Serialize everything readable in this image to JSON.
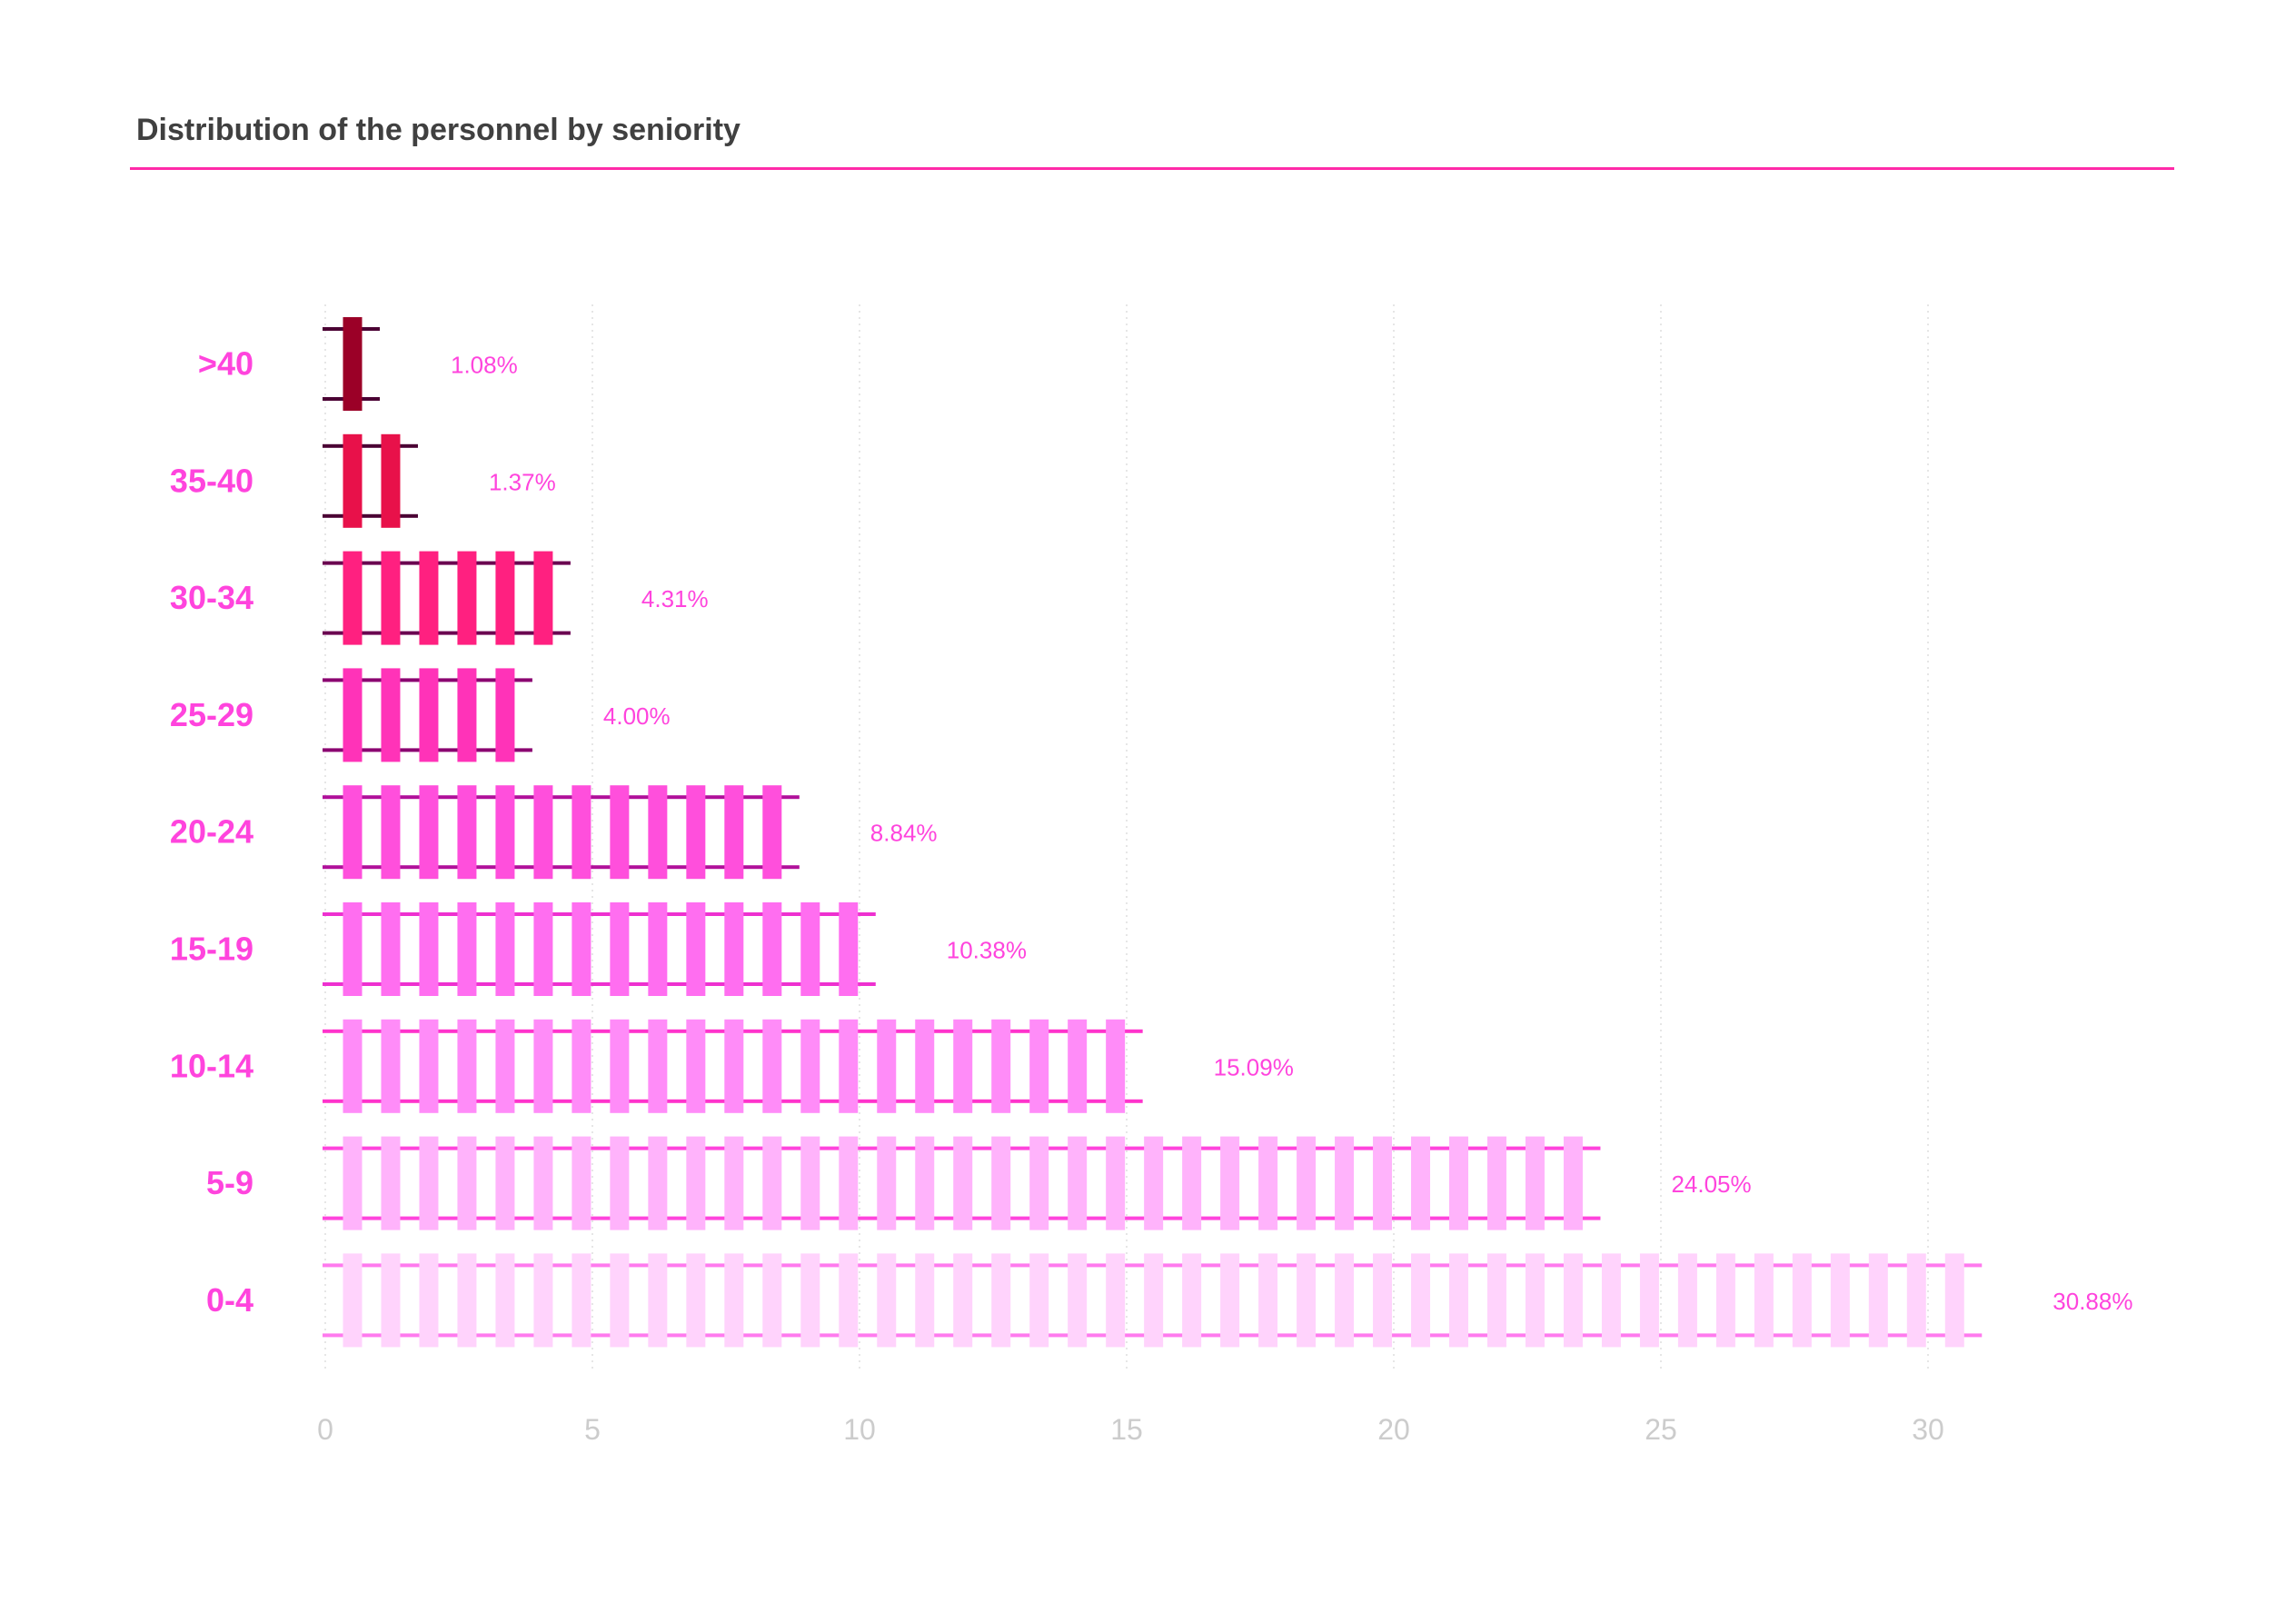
{
  "chart_data": {
    "type": "bar",
    "title": "Distribution of the personnel by seniority",
    "xlabel": "",
    "ylabel": "",
    "orientation": "horizontal",
    "xlim": [
      0,
      33
    ],
    "xticks": [
      0,
      5,
      10,
      15,
      20,
      25,
      30
    ],
    "grid": "vertical-dotted",
    "categories": [
      ">40",
      "35-40",
      "30-34",
      "25-29",
      "20-24",
      "15-19",
      "10-14",
      "5-9",
      "0-4"
    ],
    "values": [
      1.08,
      1.37,
      4.31,
      4.0,
      8.84,
      10.38,
      15.09,
      24.05,
      30.88
    ],
    "value_labels": [
      "1.08%",
      "1.37%",
      "4.31%",
      "4.00%",
      "8.84%",
      "10.38%",
      "15.09%",
      "24.05%",
      "30.88%"
    ],
    "tie_colors": [
      "#9b0027",
      "#e8114a",
      "#ff2080",
      "#ff33b8",
      "#ff4fdc",
      "#ff6ef0",
      "#ff8cf8",
      "#ffb3fb",
      "#ffd3fc"
    ],
    "rail_colors": [
      "#4a0033",
      "#4a0033",
      "#6a0050",
      "#8a0070",
      "#b0109a",
      "#ee30d0",
      "#ff33cc",
      "#ff44dd",
      "#ff7aee"
    ],
    "label_color": "#ff44dd",
    "axis_label_color": "#cccccc",
    "accent_color": "#ff2aa8"
  }
}
